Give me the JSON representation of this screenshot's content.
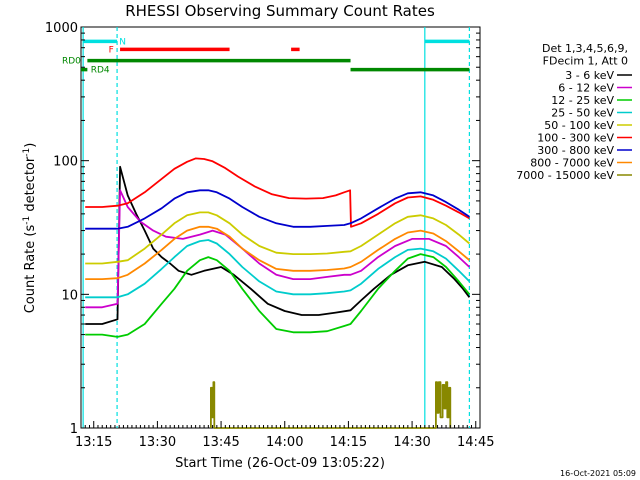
{
  "chart_data": {
    "type": "line",
    "title": "RHESSI Observing Summary Count Rates",
    "xlabel": "Start Time (26-Oct-09 13:05:22)",
    "ylabel": "Count Rate (s",
    "ylabel_sup": "-1",
    "ylabel_tail": " detector",
    "ylabel_end": ")",
    "xlim": [
      7.0,
      101.0
    ],
    "ylim": [
      1,
      1000
    ],
    "yscale": "log",
    "x_unit": "minutes after 13:05",
    "x_ticks": [
      {
        "x": 10,
        "label": "13:15"
      },
      {
        "x": 25,
        "label": "13:30"
      },
      {
        "x": 40,
        "label": "13:45"
      },
      {
        "x": 55,
        "label": "14:00"
      },
      {
        "x": 70,
        "label": "14:15"
      },
      {
        "x": 85,
        "label": "14:30"
      },
      {
        "x": 100,
        "label": "14:45"
      }
    ],
    "y_ticks": [
      {
        "y": 1,
        "label": "1"
      },
      {
        "y": 10,
        "label": "10"
      },
      {
        "y": 100,
        "label": "100"
      },
      {
        "y": 1000,
        "label": "1000"
      }
    ],
    "legend_header": [
      "Det 1,3,4,5,6,9,",
      "FDecim 1, Att 0"
    ],
    "legend_position": "right",
    "series": [
      {
        "name": "3 - 6 keV",
        "color": "#000000",
        "points": [
          [
            8,
            6
          ],
          [
            12,
            6
          ],
          [
            15.6,
            6.5
          ],
          [
            16.2,
            90
          ],
          [
            18,
            55
          ],
          [
            20,
            40
          ],
          [
            22,
            30
          ],
          [
            24,
            22
          ],
          [
            26,
            19
          ],
          [
            28,
            17
          ],
          [
            30,
            15
          ],
          [
            33,
            14
          ],
          [
            36,
            15
          ],
          [
            40,
            16
          ],
          [
            43,
            14
          ],
          [
            47,
            11
          ],
          [
            51,
            8.5
          ],
          [
            55,
            7.5
          ],
          [
            59,
            7
          ],
          [
            63,
            7
          ],
          [
            67,
            7.3
          ],
          [
            70.5,
            7.6
          ],
          [
            73,
            9
          ],
          [
            76,
            11
          ],
          [
            80,
            14
          ],
          [
            84,
            16.5
          ],
          [
            88,
            17.5
          ],
          [
            92,
            16
          ],
          [
            95,
            13
          ],
          [
            97,
            11
          ],
          [
            98.5,
            9.5
          ]
        ]
      },
      {
        "name": "6 - 12 keV",
        "color": "#cc00cc",
        "points": [
          [
            8,
            8
          ],
          [
            12,
            8
          ],
          [
            15.6,
            8.5
          ],
          [
            16.2,
            60
          ],
          [
            18,
            45
          ],
          [
            21,
            35
          ],
          [
            24,
            30
          ],
          [
            27,
            27
          ],
          [
            31,
            26
          ],
          [
            35,
            28
          ],
          [
            38,
            30
          ],
          [
            41,
            28
          ],
          [
            45,
            22
          ],
          [
            49,
            17
          ],
          [
            53,
            14
          ],
          [
            57,
            13
          ],
          [
            61,
            13
          ],
          [
            65,
            13.5
          ],
          [
            69,
            14
          ],
          [
            70.5,
            14
          ],
          [
            73,
            15
          ],
          [
            77,
            19
          ],
          [
            81,
            23
          ],
          [
            85,
            26
          ],
          [
            89,
            26
          ],
          [
            93,
            23
          ],
          [
            96,
            19
          ],
          [
            98.5,
            16
          ]
        ]
      },
      {
        "name": "12 - 25 keV",
        "color": "#00cc00",
        "points": [
          [
            8,
            5
          ],
          [
            12,
            5
          ],
          [
            15.6,
            4.8
          ],
          [
            18,
            5
          ],
          [
            22,
            6
          ],
          [
            26,
            8.5
          ],
          [
            29,
            11
          ],
          [
            32,
            15
          ],
          [
            35,
            18
          ],
          [
            37,
            19
          ],
          [
            39,
            18
          ],
          [
            42,
            15
          ],
          [
            45,
            11
          ],
          [
            49,
            7.5
          ],
          [
            53,
            5.5
          ],
          [
            57,
            5.2
          ],
          [
            61,
            5.2
          ],
          [
            65,
            5.3
          ],
          [
            69,
            5.8
          ],
          [
            70.5,
            6
          ],
          [
            73,
            7.5
          ],
          [
            77,
            11
          ],
          [
            81,
            15
          ],
          [
            84,
            18.5
          ],
          [
            87,
            20
          ],
          [
            90,
            19
          ],
          [
            93,
            16
          ],
          [
            96,
            12.5
          ],
          [
            98.5,
            10
          ]
        ]
      },
      {
        "name": "25 - 50 keV",
        "color": "#00cccc",
        "points": [
          [
            8,
            9.5
          ],
          [
            12,
            9.5
          ],
          [
            15.6,
            9.5
          ],
          [
            18,
            10
          ],
          [
            22,
            12
          ],
          [
            26,
            15.5
          ],
          [
            29,
            19
          ],
          [
            32,
            23
          ],
          [
            35,
            25
          ],
          [
            37,
            25.5
          ],
          [
            39,
            24
          ],
          [
            42,
            20
          ],
          [
            45,
            16
          ],
          [
            49,
            12.5
          ],
          [
            53,
            10.5
          ],
          [
            57,
            10
          ],
          [
            61,
            10
          ],
          [
            65,
            10.2
          ],
          [
            69,
            10.5
          ],
          [
            70.5,
            10.7
          ],
          [
            73,
            12
          ],
          [
            77,
            15.5
          ],
          [
            81,
            19
          ],
          [
            84,
            21.5
          ],
          [
            87,
            22
          ],
          [
            90,
            21
          ],
          [
            93,
            18.5
          ],
          [
            96,
            15
          ],
          [
            98.5,
            12.5
          ]
        ]
      },
      {
        "name": "50 - 100 keV",
        "color": "#cccc00",
        "points": [
          [
            8,
            17
          ],
          [
            12,
            17
          ],
          [
            15.6,
            17.5
          ],
          [
            18,
            18
          ],
          [
            22,
            22
          ],
          [
            26,
            28
          ],
          [
            29,
            34
          ],
          [
            32,
            39
          ],
          [
            35,
            41
          ],
          [
            37,
            41
          ],
          [
            39,
            39
          ],
          [
            42,
            34
          ],
          [
            45,
            28
          ],
          [
            49,
            23
          ],
          [
            53,
            20.5
          ],
          [
            57,
            20
          ],
          [
            61,
            20
          ],
          [
            65,
            20.2
          ],
          [
            69,
            20.8
          ],
          [
            70.5,
            21
          ],
          [
            73,
            23
          ],
          [
            77,
            28
          ],
          [
            81,
            34
          ],
          [
            84,
            38
          ],
          [
            87,
            39
          ],
          [
            90,
            37
          ],
          [
            93,
            33
          ],
          [
            96,
            28
          ],
          [
            98.5,
            24
          ]
        ]
      },
      {
        "name": "100 - 300 keV",
        "color": "#ff0000",
        "points": [
          [
            8,
            45
          ],
          [
            12,
            45
          ],
          [
            15.6,
            46
          ],
          [
            18,
            48
          ],
          [
            22,
            58
          ],
          [
            26,
            73
          ],
          [
            29,
            87
          ],
          [
            32,
            98
          ],
          [
            34,
            104
          ],
          [
            36,
            103
          ],
          [
            38,
            99
          ],
          [
            41,
            88
          ],
          [
            44,
            76
          ],
          [
            48,
            64
          ],
          [
            52,
            56
          ],
          [
            56,
            52.5
          ],
          [
            60,
            52
          ],
          [
            64,
            52.5
          ],
          [
            67,
            55
          ],
          [
            69,
            58
          ],
          [
            70.4,
            60
          ],
          [
            70.6,
            32
          ],
          [
            73,
            34
          ],
          [
            77,
            40
          ],
          [
            81,
            48
          ],
          [
            84,
            53
          ],
          [
            87,
            54
          ],
          [
            90,
            51
          ],
          [
            93,
            46
          ],
          [
            96,
            41
          ],
          [
            98.5,
            37
          ]
        ]
      },
      {
        "name": "300 - 800 keV",
        "color": "#0000cc",
        "points": [
          [
            8,
            31
          ],
          [
            12,
            31
          ],
          [
            15.6,
            31
          ],
          [
            18,
            32
          ],
          [
            22,
            37
          ],
          [
            26,
            44
          ],
          [
            29,
            52
          ],
          [
            32,
            58
          ],
          [
            35,
            60
          ],
          [
            37,
            60
          ],
          [
            39,
            58
          ],
          [
            42,
            52
          ],
          [
            45,
            45
          ],
          [
            49,
            38
          ],
          [
            53,
            34
          ],
          [
            57,
            32
          ],
          [
            61,
            32
          ],
          [
            65,
            32.5
          ],
          [
            69,
            33
          ],
          [
            70.5,
            34
          ],
          [
            73,
            37
          ],
          [
            77,
            44
          ],
          [
            81,
            52
          ],
          [
            84,
            57
          ],
          [
            87,
            58
          ],
          [
            90,
            55
          ],
          [
            93,
            49
          ],
          [
            96,
            43
          ],
          [
            98.5,
            38
          ]
        ]
      },
      {
        "name": "800 - 7000 keV",
        "color": "#ff8800",
        "points": [
          [
            8,
            13
          ],
          [
            12,
            13
          ],
          [
            15.6,
            13.2
          ],
          [
            18,
            14
          ],
          [
            22,
            17
          ],
          [
            26,
            21.5
          ],
          [
            29,
            26
          ],
          [
            32,
            30
          ],
          [
            35,
            32
          ],
          [
            37,
            32
          ],
          [
            39,
            31
          ],
          [
            42,
            27
          ],
          [
            45,
            22
          ],
          [
            49,
            18
          ],
          [
            53,
            15.5
          ],
          [
            57,
            15
          ],
          [
            61,
            15
          ],
          [
            65,
            15.2
          ],
          [
            69,
            15.6
          ],
          [
            70.5,
            16
          ],
          [
            73,
            17.5
          ],
          [
            77,
            21.5
          ],
          [
            81,
            26
          ],
          [
            84,
            29
          ],
          [
            87,
            30
          ],
          [
            90,
            28.5
          ],
          [
            93,
            25
          ],
          [
            96,
            21
          ],
          [
            98.5,
            18
          ]
        ]
      },
      {
        "name": "7000 - 15000 keV",
        "color": "#888800",
        "points": [
          [
            37.6,
            1
          ],
          [
            37.6,
            2
          ],
          [
            37.9,
            2
          ],
          [
            37.9,
            1.2
          ],
          [
            38.2,
            1.2
          ],
          [
            38.2,
            2.2
          ],
          [
            38.4,
            2.2
          ],
          [
            38.4,
            1
          ],
          [
            90.6,
            1
          ],
          [
            90.6,
            2.2
          ],
          [
            90.9,
            2.2
          ],
          [
            90.9,
            1.3
          ],
          [
            91.3,
            1.3
          ],
          [
            91.3,
            2.2
          ],
          [
            91.7,
            2.2
          ],
          [
            91.7,
            1.2
          ],
          [
            92.2,
            1.2
          ],
          [
            92.2,
            2.1
          ],
          [
            92.6,
            2.1
          ],
          [
            92.6,
            1.4
          ],
          [
            93,
            1.4
          ],
          [
            93,
            2.2
          ],
          [
            93.3,
            2.2
          ],
          [
            93.3,
            1.2
          ],
          [
            93.7,
            1.2
          ],
          [
            93.7,
            2
          ],
          [
            94,
            2
          ],
          [
            94,
            1
          ]
        ]
      }
    ],
    "state_bars": [
      {
        "label": "",
        "color": "#00e0e0",
        "y": 780,
        "segments": [
          [
            7.5,
            15.5
          ],
          [
            88,
            98.5
          ]
        ]
      },
      {
        "label": "N",
        "color": "#00e0e0",
        "label_x": 16.0,
        "y": 780,
        "segments": []
      },
      {
        "label": "F",
        "color": "#ff0000",
        "label_x": 13.5,
        "y": 680,
        "segments": [
          [
            16.2,
            42
          ]
        ],
        "extra_segments": [
          [
            56.5,
            58.5
          ]
        ]
      },
      {
        "label": "RD0",
        "color": "#008800",
        "label_x": 0.0,
        "y": 560,
        "segments": [
          [
            8.5,
            70.5
          ]
        ]
      },
      {
        "label": "RD4",
        "color": "#008800",
        "label_x": 9.3,
        "y": 480,
        "segments": [
          [
            7,
            8.5
          ],
          [
            70.5,
            98.5
          ]
        ]
      }
    ],
    "vlines_solid": [
      7.5,
      88
    ],
    "vlines_dashed": [
      15.5,
      98.5
    ],
    "vline_color": "#00e0e0",
    "annotation": "16-Oct-2021 05:09"
  }
}
